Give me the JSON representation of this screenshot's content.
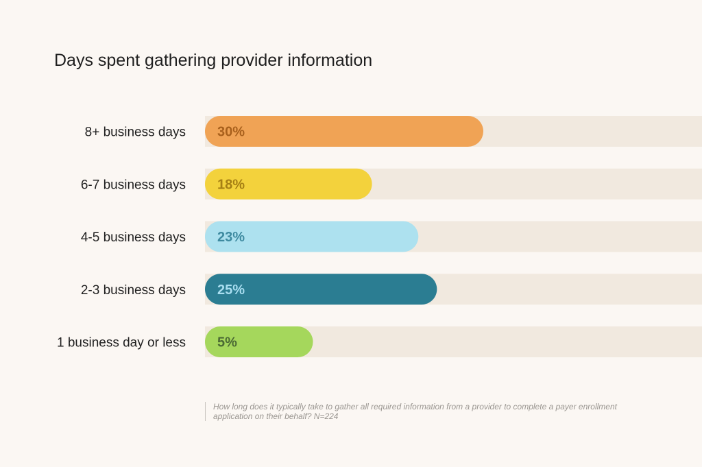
{
  "chart_data": {
    "type": "bar",
    "orientation": "horizontal",
    "title": "Days spent gathering provider information",
    "categories": [
      "8+ business days",
      "6-7 business days",
      "4-5 business days",
      "2-3 business days",
      "1 business day or less"
    ],
    "values": [
      30,
      18,
      23,
      25,
      5
    ],
    "value_labels": [
      "30%",
      "18%",
      "23%",
      "25%",
      "5%"
    ],
    "colors": [
      "#f0a355",
      "#f3d23c",
      "#ade1ef",
      "#2b7d92",
      "#a5d75c"
    ],
    "label_colors": [
      "#a8601c",
      "#a57f14",
      "#3e8aa0",
      "#a9def0",
      "#4b6a34"
    ],
    "track_color": "#f1e9df",
    "xlim": [
      0,
      100
    ],
    "grid": false,
    "legend": "none",
    "footnote": "How long does it typically take to gather all required information from a provider to complete a payer enrollment application on their behalf? N=224"
  }
}
